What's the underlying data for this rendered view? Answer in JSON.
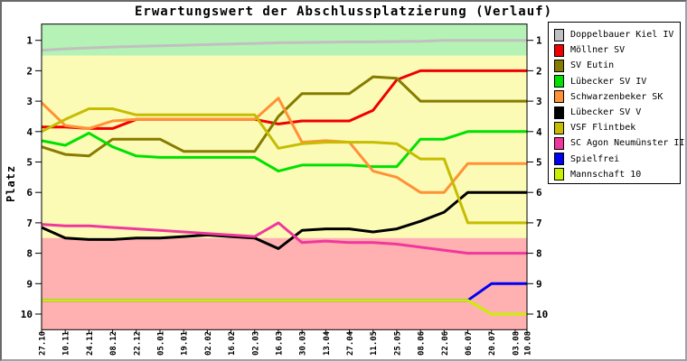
{
  "chart_data": {
    "type": "line",
    "title": "Erwartungswert der Abschlussplatzierung (Verlauf)",
    "ylabel": "Platz",
    "xlabel": "",
    "legend_position": "right-outside",
    "grid": false,
    "y_axis_inverted": true,
    "ylim": [
      0.47,
      10.52
    ],
    "y_ticks": [
      1,
      2,
      3,
      4,
      5,
      6,
      7,
      8,
      9,
      10
    ],
    "x_tick_labels": [
      "27.10",
      "10.11",
      "24.11",
      "08.12",
      "22.12",
      "05.01",
      "19.01",
      "02.02",
      "16.02",
      "02.03",
      "16.03",
      "30.03",
      "13.04",
      "27.04",
      "11.05",
      "25.05",
      "08.06",
      "22.06",
      "06.07",
      "20.07",
      "03.08",
      "10.08"
    ],
    "x_days": [
      0,
      14,
      28,
      42,
      56,
      70,
      84,
      98,
      112,
      126,
      140,
      154,
      168,
      182,
      196,
      210,
      224,
      238,
      252,
      266,
      280,
      287
    ],
    "bands": [
      {
        "name": "top",
        "from": 0.47,
        "to": 1.5,
        "color": "#b5f2b5"
      },
      {
        "name": "middle",
        "from": 1.5,
        "to": 7.5,
        "color": "#fbfbb6"
      },
      {
        "name": "bottom",
        "from": 7.5,
        "to": 10.52,
        "color": "#ffb0b0"
      }
    ],
    "series": [
      {
        "name": "Doppelbauer Kiel IV",
        "color": "#c0c0c0",
        "values": [
          1.33,
          1.28,
          1.25,
          1.22,
          1.2,
          1.18,
          1.16,
          1.14,
          1.12,
          1.1,
          1.08,
          1.07,
          1.06,
          1.05,
          1.05,
          1.04,
          1.03,
          1.0,
          1.0,
          1.0,
          1.0,
          1.0
        ]
      },
      {
        "name": "Möllner SV",
        "color": "#f00000",
        "values": [
          3.85,
          3.85,
          3.9,
          3.9,
          3.6,
          3.6,
          3.6,
          3.6,
          3.6,
          3.6,
          3.75,
          3.65,
          3.65,
          3.65,
          3.3,
          2.3,
          2.0,
          2.0,
          2.0,
          2.0,
          2.0,
          2.0
        ]
      },
      {
        "name": "SV Eutin",
        "color": "#857c00",
        "values": [
          4.5,
          4.75,
          4.8,
          4.25,
          4.25,
          4.25,
          4.65,
          4.65,
          4.65,
          4.65,
          3.5,
          2.75,
          2.75,
          2.75,
          2.2,
          2.25,
          3.0,
          3.0,
          3.0,
          3.0,
          3.0,
          3.0
        ]
      },
      {
        "name": "Lübecker SV IV",
        "color": "#00e100",
        "values": [
          4.3,
          4.45,
          4.05,
          4.5,
          4.8,
          4.85,
          4.85,
          4.85,
          4.85,
          4.85,
          5.3,
          5.1,
          5.1,
          5.1,
          5.15,
          5.15,
          4.25,
          4.25,
          4.0,
          4.0,
          4.0,
          4.0
        ]
      },
      {
        "name": "Schwarzenbeker SK",
        "color": "#ff9136",
        "values": [
          3.05,
          3.8,
          3.9,
          3.65,
          3.6,
          3.6,
          3.6,
          3.6,
          3.6,
          3.6,
          2.9,
          4.35,
          4.3,
          4.35,
          5.3,
          5.5,
          6.0,
          6.0,
          5.05,
          5.05,
          5.05,
          5.05
        ]
      },
      {
        "name": "Lübecker SV V",
        "color": "#000000",
        "values": [
          7.15,
          7.5,
          7.55,
          7.55,
          7.5,
          7.5,
          7.45,
          7.4,
          7.45,
          7.5,
          7.85,
          7.25,
          7.2,
          7.2,
          7.3,
          7.2,
          6.95,
          6.65,
          6.0,
          6.0,
          6.0,
          6.0
        ]
      },
      {
        "name": "VSF Flintbek",
        "color": "#c6bc00",
        "values": [
          4.0,
          3.6,
          3.25,
          3.25,
          3.45,
          3.45,
          3.45,
          3.45,
          3.45,
          3.45,
          4.55,
          4.4,
          4.35,
          4.35,
          4.35,
          4.4,
          4.9,
          4.9,
          7.0,
          7.0,
          7.0,
          7.0
        ]
      },
      {
        "name": "SC Agon Neumünster II",
        "color": "#f0389c",
        "values": [
          7.05,
          7.1,
          7.1,
          7.15,
          7.2,
          7.25,
          7.3,
          7.35,
          7.4,
          7.45,
          7.0,
          7.65,
          7.6,
          7.65,
          7.65,
          7.7,
          7.8,
          7.9,
          8.0,
          8.0,
          8.0,
          8.0
        ]
      },
      {
        "name": "Spielfrei",
        "color": "#0000f0",
        "values": [
          9.55,
          9.55,
          9.55,
          9.55,
          9.55,
          9.55,
          9.55,
          9.55,
          9.55,
          9.55,
          9.55,
          9.55,
          9.55,
          9.55,
          9.55,
          9.55,
          9.55,
          9.55,
          9.55,
          9.0,
          9.0,
          9.0
        ]
      },
      {
        "name": "Mannschaft 10",
        "color": "#c8f000",
        "values": [
          9.55,
          9.55,
          9.55,
          9.55,
          9.55,
          9.55,
          9.55,
          9.55,
          9.55,
          9.55,
          9.55,
          9.55,
          9.55,
          9.55,
          9.55,
          9.55,
          9.55,
          9.55,
          9.55,
          10.0,
          10.0,
          10.0
        ]
      }
    ]
  }
}
